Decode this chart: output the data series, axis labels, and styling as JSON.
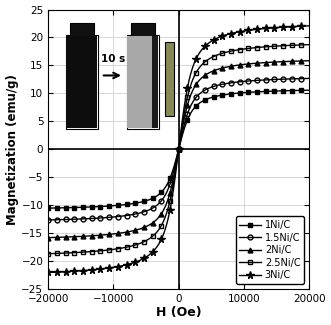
{
  "title": "",
  "xlabel": "H (Oe)",
  "ylabel": "Magnetization (emu/g)",
  "xlim": [
    -20000,
    20000
  ],
  "ylim": [
    -25,
    25
  ],
  "xticks": [
    -20000,
    -10000,
    0,
    10000,
    20000
  ],
  "yticks": [
    -25,
    -20,
    -15,
    -10,
    -5,
    0,
    5,
    10,
    15,
    20,
    25
  ],
  "series": [
    {
      "label": "1Ni/C",
      "Ms": 11.0,
      "a": 800,
      "marker": "s",
      "fillstyle": "full"
    },
    {
      "label": "1.5Ni/C",
      "Ms": 13.2,
      "a": 800,
      "marker": "o",
      "fillstyle": "none"
    },
    {
      "label": "2Ni/C",
      "Ms": 16.5,
      "a": 800,
      "marker": "^",
      "fillstyle": "full"
    },
    {
      "label": "2.5Ni/C",
      "Ms": 19.5,
      "a": 800,
      "marker": "s",
      "fillstyle": "none"
    },
    {
      "label": "3Ni/C",
      "Ms": 23.0,
      "a": 800,
      "marker": "*",
      "fillstyle": "full"
    }
  ],
  "inset_text": "10 s",
  "background_color": "#ffffff",
  "grid_color": "#c8c8c8",
  "inset_bg": "#dcdcdc",
  "inset_left_vial_body": "#111111",
  "inset_left_vial_liquid": "#111111",
  "inset_right_vial_liquid": "#909090",
  "inset_right_sediment": "#222222"
}
